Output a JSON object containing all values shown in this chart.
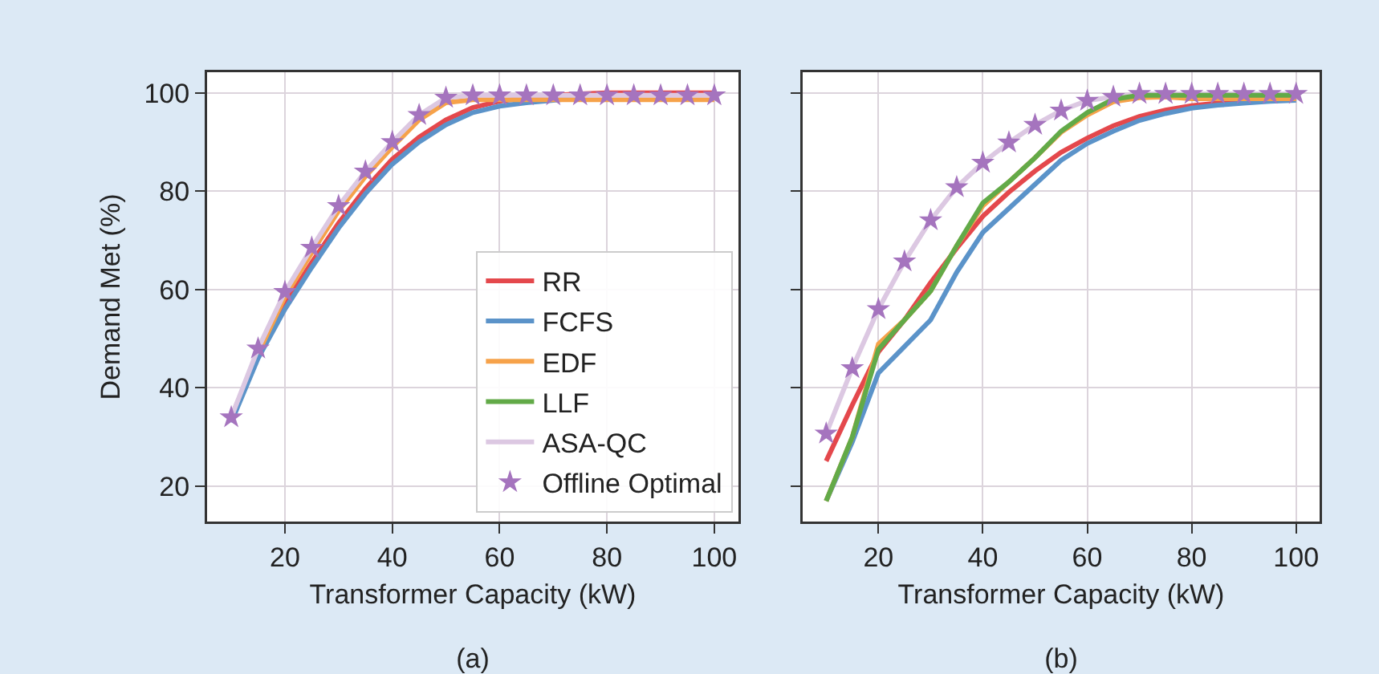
{
  "chart_data": [
    {
      "type": "line",
      "title": "(a)",
      "xlabel": "Transformer Capacity (kW)",
      "ylabel": "Demand Met (%)",
      "x": [
        10,
        15,
        20,
        25,
        30,
        35,
        40,
        45,
        50,
        55,
        60,
        65,
        70,
        75,
        80,
        85,
        90,
        95,
        100
      ],
      "series": [
        {
          "name": "RR",
          "color": "#e4484c",
          "values": [
            34,
            47,
            57,
            65.5,
            73.5,
            80.5,
            86.5,
            91,
            94.5,
            97,
            98.3,
            99,
            99.5,
            99.8,
            100,
            100,
            100,
            100,
            100
          ]
        },
        {
          "name": "FCFS",
          "color": "#5b93c9",
          "values": [
            33,
            46,
            56,
            64.5,
            72.5,
            79.5,
            85.5,
            90,
            93.5,
            96,
            97.3,
            98,
            98.5,
            99,
            null,
            null,
            null,
            null,
            null
          ]
        },
        {
          "name": "EDF",
          "color": "#f6a24a",
          "values": [
            null,
            47,
            58.5,
            67.5,
            76,
            83,
            89,
            94.5,
            98,
            98.6,
            98.6,
            98.6,
            98.6,
            98.6,
            98.6,
            98.6,
            98.6,
            98.6,
            98.6
          ]
        },
        {
          "name": "LLF",
          "color": "#62aa48",
          "values": [
            null,
            null,
            null,
            null,
            null,
            null,
            null,
            null,
            null,
            null,
            null,
            null,
            null,
            null,
            null,
            null,
            null,
            null,
            null
          ]
        },
        {
          "name": "ASA-QC",
          "color": "#dcc8e2",
          "values": [
            34,
            48,
            59.5,
            68.5,
            77,
            84,
            90,
            95.5,
            99,
            99.5,
            99.5,
            99.5,
            99.5,
            99.5,
            99.5,
            99.5,
            99.5,
            99.5,
            99.5
          ]
        },
        {
          "name": "Offline Optimal",
          "type": "scatter",
          "marker": "star",
          "color": "#a574be",
          "values": [
            34,
            48,
            59.5,
            68.5,
            77,
            84,
            90,
            95.5,
            99,
            99.5,
            99.5,
            99.5,
            99.5,
            99.5,
            99.5,
            99.5,
            99.5,
            99.5,
            99.5
          ]
        }
      ],
      "xlim": [
        5.5,
        104.5
      ],
      "ylim": [
        12.8,
        104.2
      ],
      "xticks": [
        20,
        40,
        60,
        80,
        100
      ],
      "yticks": [
        20,
        40,
        60,
        80,
        100
      ],
      "grid": true,
      "legend": "bottom right"
    },
    {
      "type": "line",
      "title": "(b)",
      "xlabel": "Transformer Capacity (kW)",
      "x": [
        10,
        15,
        20,
        25,
        30,
        35,
        40,
        45,
        50,
        55,
        60,
        65,
        70,
        75,
        80,
        85,
        90,
        95,
        100
      ],
      "series": [
        {
          "color": "#dcc8e2",
          "values": [
            30.7,
            44,
            56,
            65.7,
            74.1,
            80.8,
            85.8,
            89.9,
            93.5,
            96.4,
            98.4,
            99.2,
            99.8,
            99.8,
            99.8,
            99.8,
            99.8,
            99.8,
            99.8
          ]
        },
        {
          "color": "#e4484c",
          "values": [
            25.1,
            36.5,
            47.3,
            53.8,
            61.4,
            68.4,
            74.9,
            79.8,
            84.1,
            87.9,
            90.8,
            93.3,
            95.2,
            96.5,
            97.4,
            97.9,
            98.4,
            98.6,
            98.8
          ]
        },
        {
          "color": "#5b93c9",
          "values": [
            17,
            29,
            43,
            48.4,
            53.8,
            63.5,
            71.6,
            76.5,
            81.4,
            86.3,
            89.7,
            92.2,
            94.4,
            95.8,
            96.9,
            97.5,
            97.9,
            98.3,
            98.5
          ]
        },
        {
          "color": "#f6a24a",
          "values": [
            17,
            30,
            48.9,
            53.8,
            59.7,
            68.9,
            77,
            81.9,
            86.8,
            92,
            95.5,
            98.2,
            99,
            99.2,
            98.8,
            98.8,
            98.8,
            98.8,
            98.8
          ]
        },
        {
          "color": "#62aa48",
          "values": [
            17,
            30,
            47.8,
            53.8,
            59.7,
            68.9,
            77.6,
            81.9,
            86.8,
            92.2,
            96,
            98.7,
            99.5,
            99.5,
            99.5,
            99.5,
            99.5,
            99.5,
            99.5
          ]
        },
        {
          "type": "scatter",
          "marker": "star",
          "color": "#a574be",
          "values": [
            30.7,
            44,
            56,
            65.7,
            74.1,
            80.8,
            85.8,
            89.9,
            93.5,
            96.4,
            98.4,
            99.2,
            99.8,
            99.8,
            99.8,
            99.8,
            99.8,
            99.8,
            99.8
          ]
        }
      ],
      "xlim": [
        5.5,
        104.5
      ],
      "ylim": [
        12.8,
        104.2
      ],
      "xticks": [
        20,
        40,
        60,
        80,
        100
      ],
      "yticks": [
        20,
        40,
        60,
        80,
        100
      ],
      "grid": true,
      "tick_labels": "x"
    }
  ]
}
